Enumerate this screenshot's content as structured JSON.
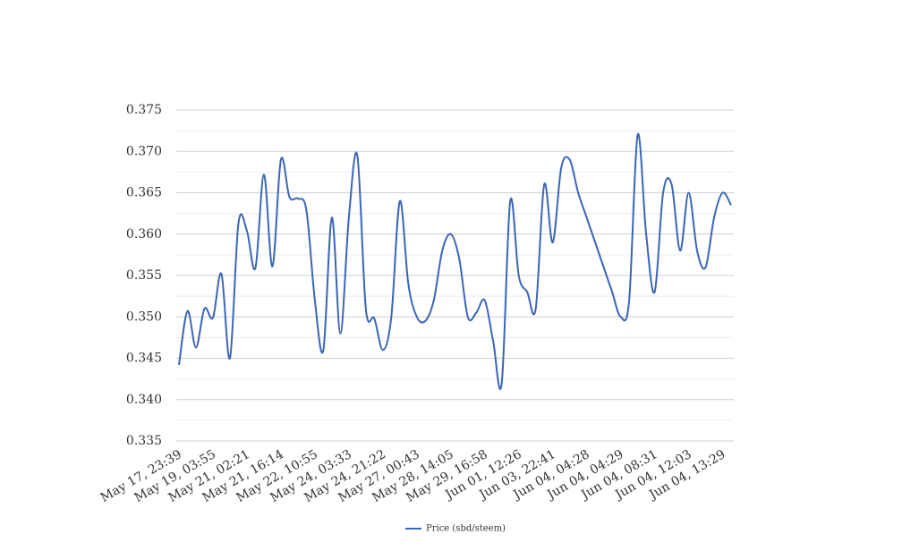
{
  "chart_data": {
    "type": "line",
    "categories": [
      "May 17, 23:39",
      null,
      null,
      null,
      "May 19, 03:55",
      null,
      null,
      null,
      "May 21, 02:21",
      null,
      null,
      null,
      "May 21, 16:14",
      null,
      null,
      null,
      "May 22, 10:55",
      null,
      null,
      null,
      "May 24, 03:33",
      null,
      null,
      null,
      "May 24, 21:22",
      null,
      null,
      null,
      "May 27, 00:43",
      null,
      null,
      null,
      "May 28, 14:05",
      null,
      null,
      null,
      "May 29, 16:58",
      null,
      null,
      null,
      "Jun 01, 12:26",
      null,
      null,
      null,
      "Jun 03, 22:41",
      null,
      null,
      null,
      "Jun 04, 04:28",
      null,
      null,
      null,
      "Jun 04, 04:29",
      null,
      null,
      null,
      "Jun 04, 08:31",
      null,
      null,
      null,
      "Jun 04, 12:03",
      null,
      null,
      null,
      "Jun 04, 13:29",
      null
    ],
    "series": [
      {
        "name": "Price (sbd/steem)",
        "color": "#3b66b5",
        "values": [
          0.3442,
          0.3507,
          0.3463,
          0.351,
          0.3499,
          0.3552,
          0.345,
          0.3613,
          0.3604,
          0.3559,
          0.3672,
          0.3561,
          0.369,
          0.3645,
          0.3643,
          0.3629,
          0.352,
          0.346,
          0.362,
          0.348,
          0.362,
          0.3695,
          0.351,
          0.3498,
          0.346,
          0.35,
          0.364,
          0.354,
          0.35,
          0.3495,
          0.352,
          0.358,
          0.36,
          0.357,
          0.35,
          0.3505,
          0.352,
          0.347,
          0.342,
          0.364,
          0.355,
          0.353,
          0.351,
          0.366,
          0.359,
          0.368,
          0.369,
          0.365,
          0.362,
          0.359,
          0.356,
          0.353,
          0.35,
          0.352,
          0.372,
          0.36,
          0.353,
          0.365,
          0.366,
          0.358,
          0.365,
          0.358,
          0.356,
          0.362,
          0.365,
          0.3635
        ]
      }
    ],
    "ylim": [
      0.335,
      0.375
    ],
    "yticks": [
      0.335,
      {
        "value": 0.34,
        "label": "0.340"
      },
      0.345,
      {
        "value": 0.35,
        "label": "0.350"
      },
      0.355,
      {
        "value": 0.36,
        "label": "0.360"
      },
      0.365,
      {
        "value": 0.37,
        "label": "0.370"
      },
      0.375
    ],
    "grid": true,
    "minor_grid": true,
    "smooth": true,
    "legend": "bottom"
  }
}
